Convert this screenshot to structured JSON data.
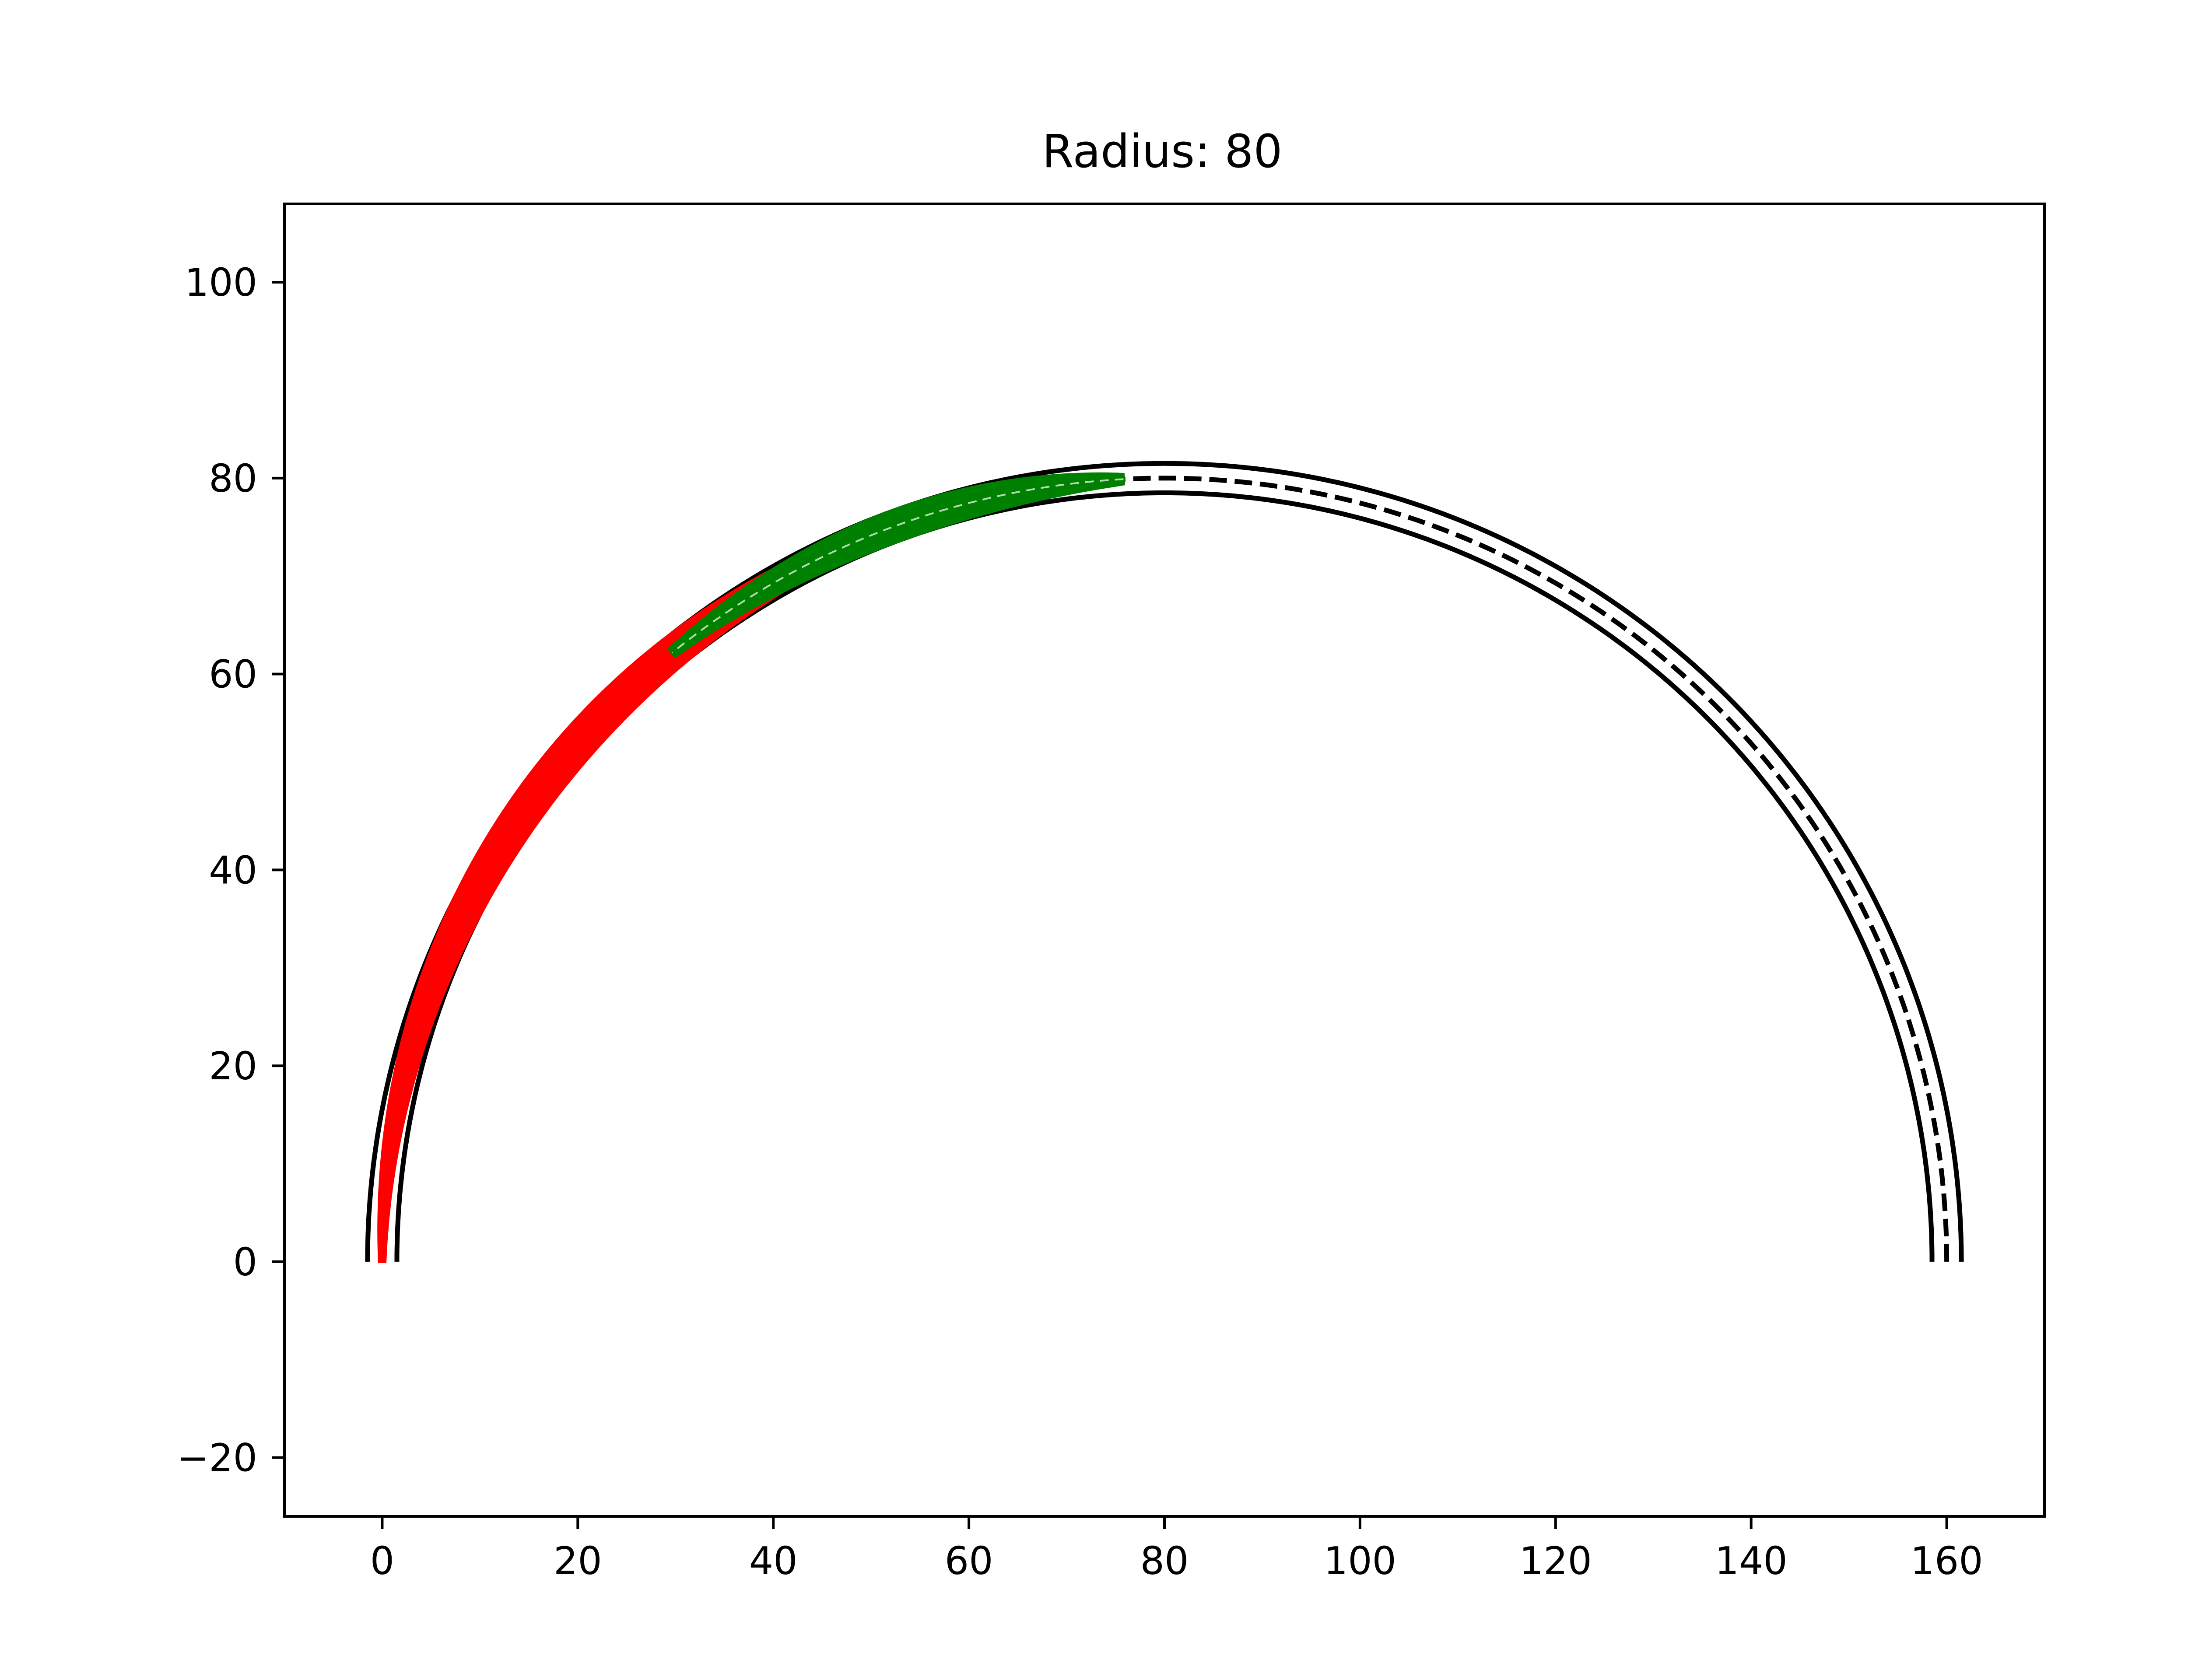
{
  "chart_data": {
    "type": "line",
    "title": "Radius: 80",
    "xlabel": "",
    "ylabel": "",
    "xlim": [
      -10,
      170
    ],
    "ylim": [
      -26,
      108
    ],
    "xticks": [
      0,
      20,
      40,
      60,
      80,
      100,
      120,
      140,
      160
    ],
    "yticks": [
      -20,
      0,
      20,
      40,
      60,
      80,
      100
    ],
    "xtick_labels": [
      "0",
      "20",
      "40",
      "60",
      "80",
      "100",
      "120",
      "140",
      "160"
    ],
    "ytick_labels": [
      "−20",
      "0",
      "20",
      "40",
      "60",
      "80",
      "100"
    ],
    "grid": false,
    "legend": "none",
    "track": {
      "center": [
        80,
        0
      ],
      "radius": 80,
      "half_width": 1.5,
      "theta_range_deg": [
        0,
        180
      ],
      "boundary_color": "#000000",
      "centerline_style": "dashed"
    },
    "series": [
      {
        "color": "#ff0000",
        "style": "lane-following band",
        "theta_range_deg": [
          106,
          180
        ],
        "max_spread": 1.8
      },
      {
        "color": "#008000",
        "style": "lane-following band",
        "theta_range_deg": [
          93,
          129
        ],
        "max_spread": 1.6
      }
    ]
  }
}
